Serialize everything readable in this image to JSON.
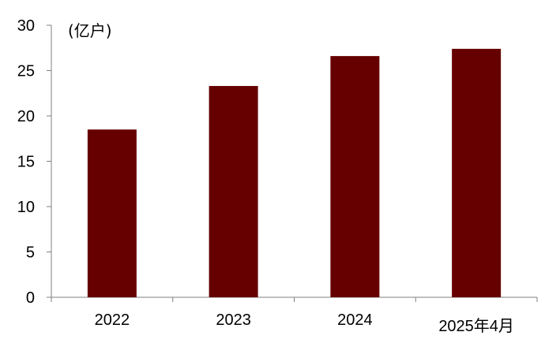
{
  "chart_data": {
    "type": "bar",
    "categories": [
      "2022",
      "2023",
      "2024",
      "2025年4月"
    ],
    "values": [
      18.5,
      23.3,
      26.6,
      27.4
    ],
    "unit": "(亿户)",
    "ylim": [
      0,
      30
    ],
    "yticks": [
      0,
      5,
      10,
      15,
      20,
      25,
      30
    ],
    "bar_color": "#660000",
    "axis_color": "#808080",
    "grid": false
  }
}
